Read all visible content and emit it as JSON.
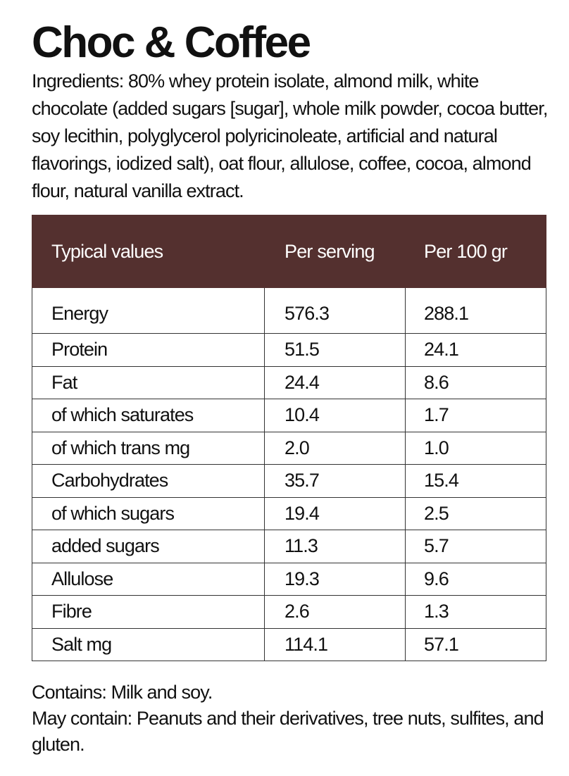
{
  "product": {
    "title": "Choc & Coffee",
    "ingredients": "Ingredients: 80% whey protein isolate, almond milk, white chocolate (added sugars [sugar], whole milk powder, cocoa butter, soy lecithin, polyglycerol polyricinoleate, artificial and natural flavorings, iodized salt), oat flour, allulose, coffee, cocoa, almond flour, natural vanilla extract."
  },
  "nutrition_table": {
    "headers": [
      "Typical values",
      "Per serving",
      "Per 100 gr"
    ],
    "header_color": "#54302f",
    "rows": [
      {
        "label": "Energy",
        "per_serving": "576.3",
        "per_100g": "288.1"
      },
      {
        "label": "Protein",
        "per_serving": "51.5",
        "per_100g": "24.1"
      },
      {
        "label": "Fat",
        "per_serving": "24.4",
        "per_100g": "8.6"
      },
      {
        "label": "of which saturates",
        "per_serving": "10.4",
        "per_100g": "1.7"
      },
      {
        "label": "of which trans mg",
        "per_serving": "2.0",
        "per_100g": "1.0"
      },
      {
        "label": "Carbohydrates",
        "per_serving": "35.7",
        "per_100g": "15.4"
      },
      {
        "label": "of which sugars",
        "per_serving": "19.4",
        "per_100g": "2.5"
      },
      {
        "label": "added sugars",
        "per_serving": "11.3",
        "per_100g": "5.7"
      },
      {
        "label": "Allulose",
        "per_serving": "19.3",
        "per_100g": "9.6"
      },
      {
        "label": "Fibre",
        "per_serving": "2.6",
        "per_100g": "1.3"
      },
      {
        "label": "Salt mg",
        "per_serving": "114.1",
        "per_100g": "57.1"
      }
    ]
  },
  "allergens": {
    "contains": "Contains: Milk and soy.",
    "may_contain": "May contain: Peanuts and their derivatives, tree nuts, sulfites, and gluten."
  }
}
